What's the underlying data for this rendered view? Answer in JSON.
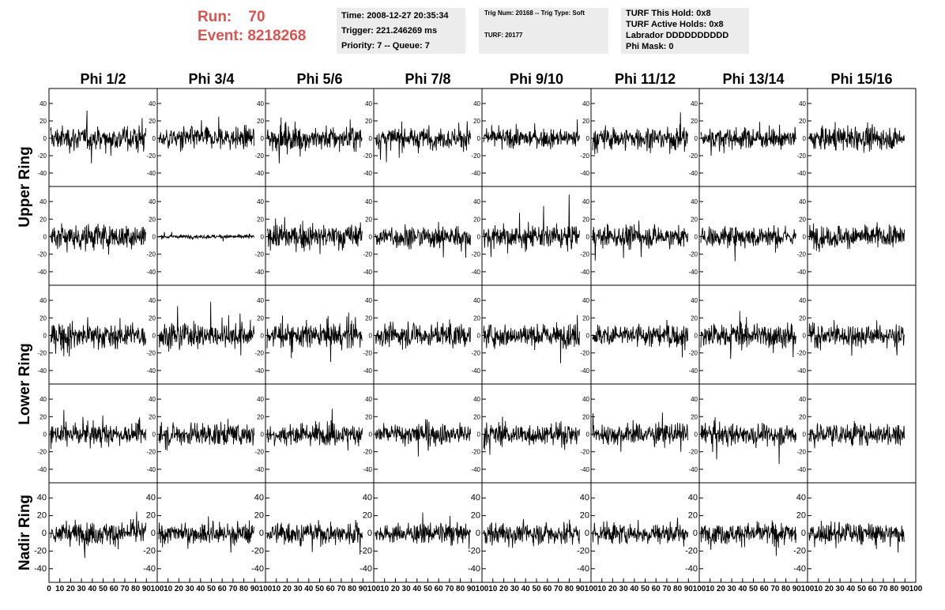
{
  "header": {
    "run_label": "Run:",
    "run_value": "70",
    "event_label": "Event:",
    "event_value": "8218268",
    "run_color": "#d9534f"
  },
  "info_box_1": {
    "time": "Time: 2008-12-27 20:35:34",
    "trigger": "Trigger: 221.246269 ms",
    "priority_queue": "Priority: 7 -- Queue: 7"
  },
  "info_box_2": {
    "trig_num_type": "Trig Num: 20168 -- Trig Type: Soft",
    "turf": "TURF: 20177"
  },
  "info_box_3": {
    "turf_this_hold": "TURF This Hold: 0x8",
    "turf_active_holds": "TURF Active Holds: 0x8",
    "labrador": "Labrador DDDDDDDDDD",
    "phi_mask": "Phi Mask: 0"
  },
  "chart_data": {
    "type": "line",
    "columns": [
      "Phi 1/2",
      "Phi 3/4",
      "Phi 5/6",
      "Phi 7/8",
      "Phi 9/10",
      "Phi 11/12",
      "Phi 13/14",
      "Phi 15/16"
    ],
    "ring_labels": [
      "Upper Ring",
      "Lower Ring",
      "Nadir Ring"
    ],
    "ylim": [
      -50,
      50
    ],
    "yticks": [
      -40,
      -20,
      0,
      20,
      40
    ],
    "xlim": [
      0,
      100
    ],
    "xticks": [
      0,
      10,
      20,
      30,
      40,
      50,
      60,
      70,
      80,
      90,
      100
    ],
    "samples_per_trace": 260,
    "line_color": "#000000",
    "grid": false,
    "rows": [
      {
        "ring": "Upper Ring",
        "amplitudes": [
          13,
          12,
          13,
          11,
          10,
          12,
          11,
          12
        ]
      },
      {
        "ring": "Upper Ring",
        "amplitudes": [
          14,
          2,
          13,
          12,
          12,
          11,
          11,
          12
        ]
      },
      {
        "ring": "Lower Ring",
        "amplitudes": [
          13,
          13,
          13,
          12,
          12,
          12,
          13,
          12
        ]
      },
      {
        "ring": "Lower Ring",
        "amplitudes": [
          11,
          12,
          11,
          12,
          11,
          11,
          11,
          12
        ]
      },
      {
        "ring": "Nadir Ring",
        "amplitudes": [
          12,
          11,
          11,
          10,
          12,
          11,
          11,
          11
        ]
      }
    ]
  }
}
